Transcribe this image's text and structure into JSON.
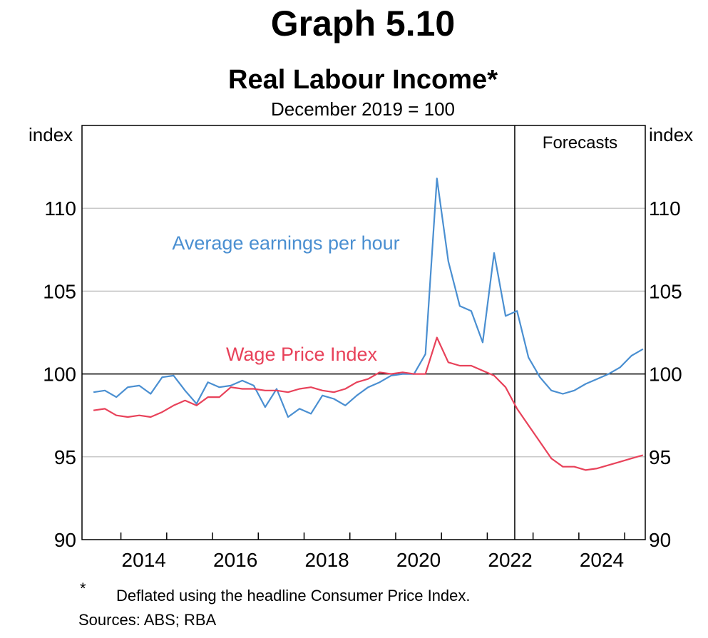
{
  "graph_number": "Graph 5.10",
  "chart_data": {
    "type": "line",
    "title": "Real Labour Income*",
    "subtitle": "December 2019 = 100",
    "ylabel_left": "index",
    "ylabel_right": "index",
    "ylim": [
      90,
      115
    ],
    "yticks": [
      90,
      95,
      100,
      105,
      110
    ],
    "xlim": [
      2012.65,
      2024.95
    ],
    "xticks": [
      2014,
      2016,
      2018,
      2020,
      2022,
      2024
    ],
    "grid": true,
    "reference_line_y": 100,
    "forecast_start": 2022.1,
    "forecast_label": "Forecasts",
    "series": [
      {
        "name": "Average earnings per hour",
        "color": "#4a8fd1",
        "x": [
          2012.9,
          2013.15,
          2013.4,
          2013.65,
          2013.9,
          2014.15,
          2014.4,
          2014.65,
          2014.9,
          2015.15,
          2015.4,
          2015.65,
          2015.9,
          2016.15,
          2016.4,
          2016.65,
          2016.9,
          2017.15,
          2017.4,
          2017.65,
          2017.9,
          2018.15,
          2018.4,
          2018.65,
          2018.9,
          2019.15,
          2019.4,
          2019.65,
          2019.9,
          2020.15,
          2020.4,
          2020.65,
          2020.9,
          2021.15,
          2021.4,
          2021.65,
          2021.9,
          2022.15,
          2022.4,
          2022.65,
          2022.9,
          2023.15,
          2023.4,
          2023.65,
          2023.9,
          2024.15,
          2024.4,
          2024.65,
          2024.9
        ],
        "values": [
          98.9,
          99.0,
          98.6,
          99.2,
          99.3,
          98.8,
          99.8,
          99.9,
          99.0,
          98.2,
          99.5,
          99.2,
          99.3,
          99.6,
          99.3,
          98.0,
          99.1,
          97.4,
          97.9,
          97.6,
          98.7,
          98.5,
          98.1,
          98.7,
          99.2,
          99.5,
          99.9,
          100.0,
          100.0,
          101.2,
          111.8,
          106.8,
          104.1,
          103.8,
          101.9,
          107.3,
          103.5,
          103.8,
          101.0,
          99.8,
          99.0,
          98.8,
          99.0,
          99.4,
          99.7,
          100.0,
          100.4,
          101.1,
          101.5
        ]
      },
      {
        "name": "Wage Price Index",
        "color": "#e8425a",
        "x": [
          2012.9,
          2013.15,
          2013.4,
          2013.65,
          2013.9,
          2014.15,
          2014.4,
          2014.65,
          2014.9,
          2015.15,
          2015.4,
          2015.65,
          2015.9,
          2016.15,
          2016.4,
          2016.65,
          2016.9,
          2017.15,
          2017.4,
          2017.65,
          2017.9,
          2018.15,
          2018.4,
          2018.65,
          2018.9,
          2019.15,
          2019.4,
          2019.65,
          2019.9,
          2020.15,
          2020.4,
          2020.65,
          2020.9,
          2021.15,
          2021.4,
          2021.65,
          2021.9,
          2022.15,
          2022.4,
          2022.65,
          2022.9,
          2023.15,
          2023.4,
          2023.65,
          2023.9,
          2024.15,
          2024.4,
          2024.65,
          2024.9
        ],
        "values": [
          97.8,
          97.9,
          97.5,
          97.4,
          97.5,
          97.4,
          97.7,
          98.1,
          98.4,
          98.1,
          98.6,
          98.6,
          99.2,
          99.1,
          99.1,
          99.0,
          99.0,
          98.9,
          99.1,
          99.2,
          99.0,
          98.9,
          99.1,
          99.5,
          99.7,
          100.1,
          100.0,
          100.1,
          100.0,
          100.0,
          102.2,
          100.7,
          100.5,
          100.5,
          100.2,
          99.9,
          99.2,
          97.9,
          96.9,
          95.9,
          94.9,
          94.4,
          94.4,
          94.2,
          94.3,
          94.5,
          94.7,
          94.9,
          95.1
        ]
      }
    ]
  },
  "series_labels": {
    "earnings": "Average earnings per hour",
    "wpi": "Wage Price Index"
  },
  "footnote": {
    "marker": "*",
    "text": "Deflated using the headline Consumer Price Index."
  },
  "sources": "Sources: ABS; RBA"
}
